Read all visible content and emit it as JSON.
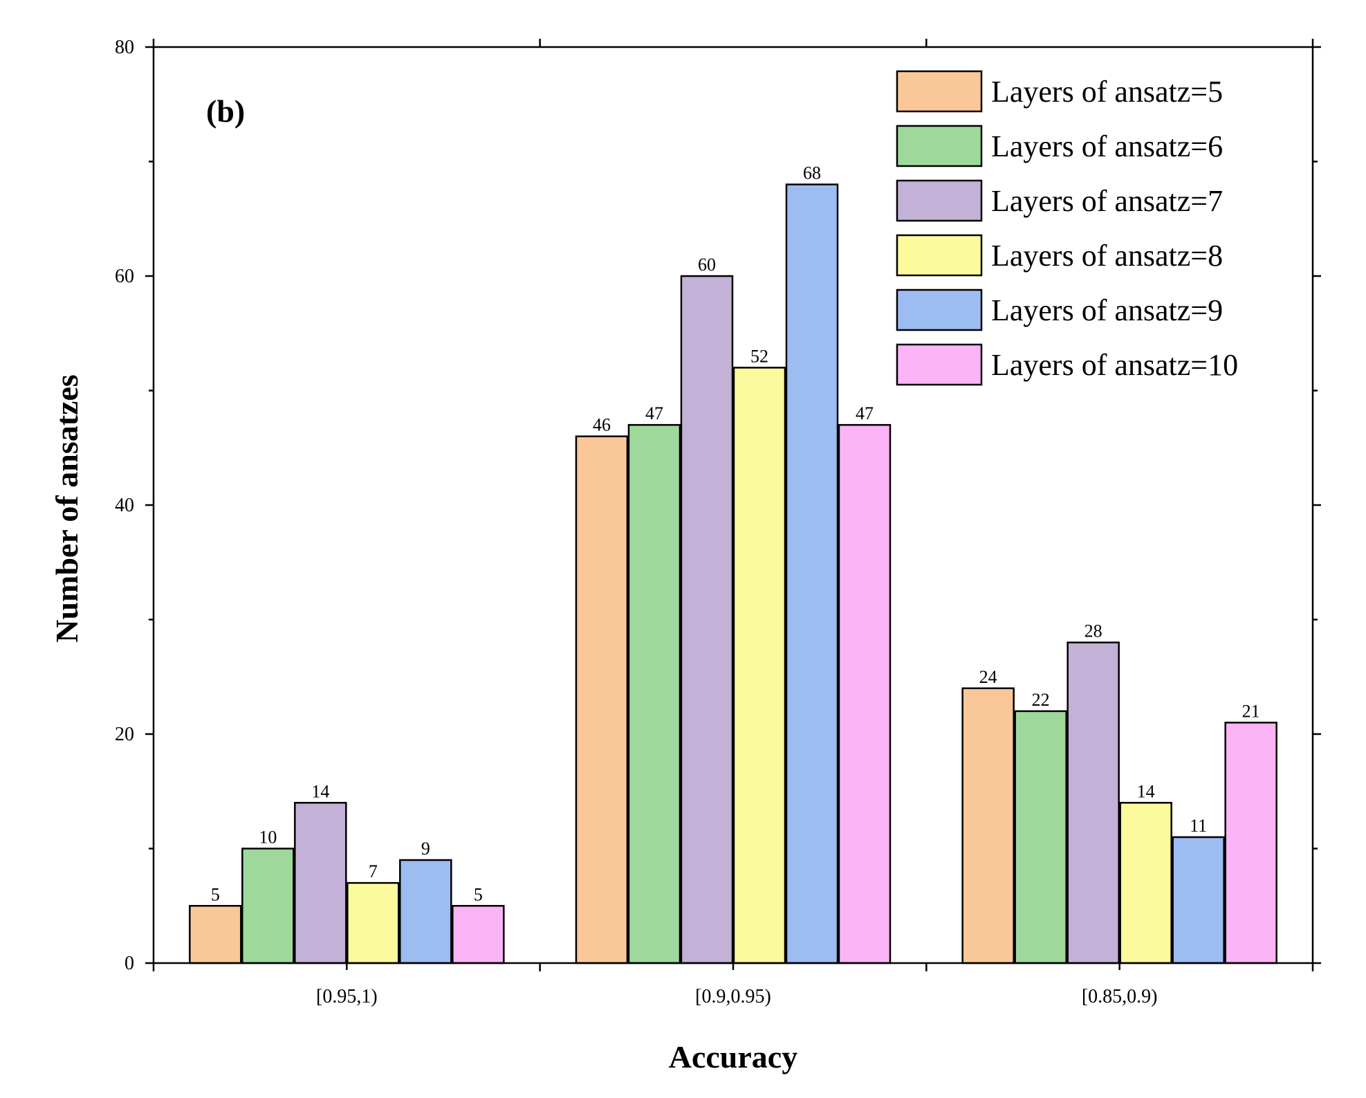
{
  "chart_data": {
    "type": "bar",
    "panel_label": "(b)",
    "xlabel": "Accuracy",
    "ylabel": "Number of ansatzes",
    "ylim": [
      0,
      80
    ],
    "yticks": [
      "0",
      "20",
      "40",
      "60",
      "80"
    ],
    "categories": [
      "[0.95,1)",
      "[0.9,0.95)",
      "[0.85,0.9)"
    ],
    "legend_position": "top-right",
    "series": [
      {
        "name": "Layers of ansatz=5",
        "color": "#FAC898",
        "values": [
          5,
          46,
          24
        ],
        "labels": [
          "5",
          "46",
          "24"
        ]
      },
      {
        "name": "Layers of ansatz=6",
        "color": "#9ED99B",
        "values": [
          10,
          47,
          22
        ],
        "labels": [
          "10",
          "47",
          "22"
        ]
      },
      {
        "name": "Layers of ansatz=7",
        "color": "#C3B1D8",
        "values": [
          14,
          60,
          28
        ],
        "labels": [
          "14",
          "60",
          "28"
        ]
      },
      {
        "name": "Layers of ansatz=8",
        "color": "#FBFB9E",
        "values": [
          7,
          52,
          14
        ],
        "labels": [
          "7",
          "52",
          "14"
        ]
      },
      {
        "name": "Layers of ansatz=9",
        "color": "#9DBCF2",
        "values": [
          9,
          68,
          11
        ],
        "labels": [
          "9",
          "68",
          "11"
        ]
      },
      {
        "name": "Layers of ansatz=10",
        "color": "#FBB4F5",
        "values": [
          5,
          47,
          21
        ],
        "labels": [
          "5",
          "47",
          "21"
        ]
      }
    ]
  }
}
